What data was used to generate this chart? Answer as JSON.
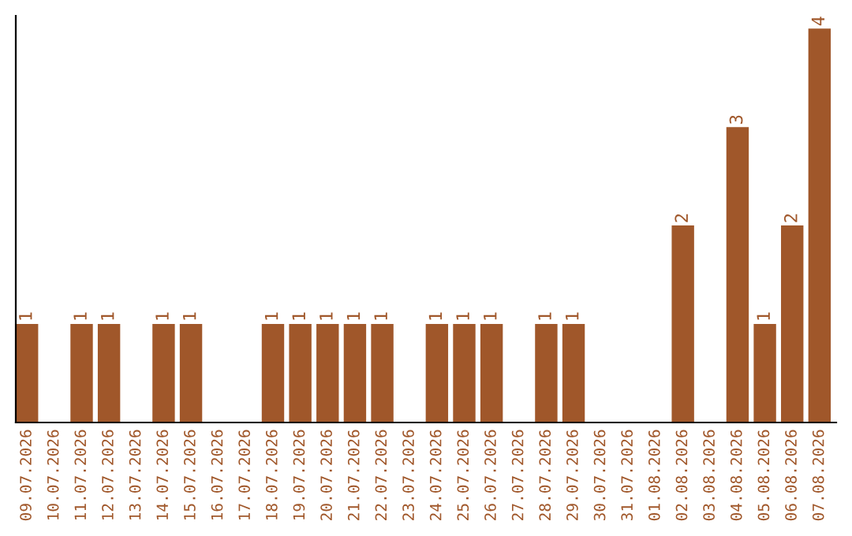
{
  "chart_data": {
    "type": "bar",
    "categories": [
      "09.07.2026",
      "10.07.2026",
      "11.07.2026",
      "12.07.2026",
      "13.07.2026",
      "14.07.2026",
      "15.07.2026",
      "16.07.2026",
      "17.07.2026",
      "18.07.2026",
      "19.07.2026",
      "20.07.2026",
      "21.07.2026",
      "22.07.2026",
      "23.07.2026",
      "24.07.2026",
      "25.07.2026",
      "26.07.2026",
      "27.07.2026",
      "28.07.2026",
      "29.07.2026",
      "30.07.2026",
      "31.07.2026",
      "01.08.2026",
      "02.08.2026",
      "03.08.2026",
      "04.08.2026",
      "05.08.2026",
      "06.08.2026",
      "07.08.2026"
    ],
    "values": [
      1,
      0,
      1,
      1,
      0,
      1,
      1,
      0,
      0,
      1,
      1,
      1,
      1,
      1,
      0,
      1,
      1,
      1,
      0,
      1,
      1,
      0,
      0,
      0,
      2,
      0,
      3,
      1,
      2,
      4
    ],
    "value_labels": [
      "1",
      null,
      "1",
      "1",
      null,
      "1",
      "1",
      null,
      null,
      "1",
      "1",
      "1",
      "1",
      "1",
      null,
      "1",
      "1",
      "1",
      null,
      "1",
      "1",
      null,
      null,
      null,
      "2",
      null,
      "3",
      "1",
      "2",
      "4"
    ],
    "color": "#a0572a",
    "ylim": [
      0,
      4.13
    ],
    "tick_labels": "x",
    "grid": false
  }
}
